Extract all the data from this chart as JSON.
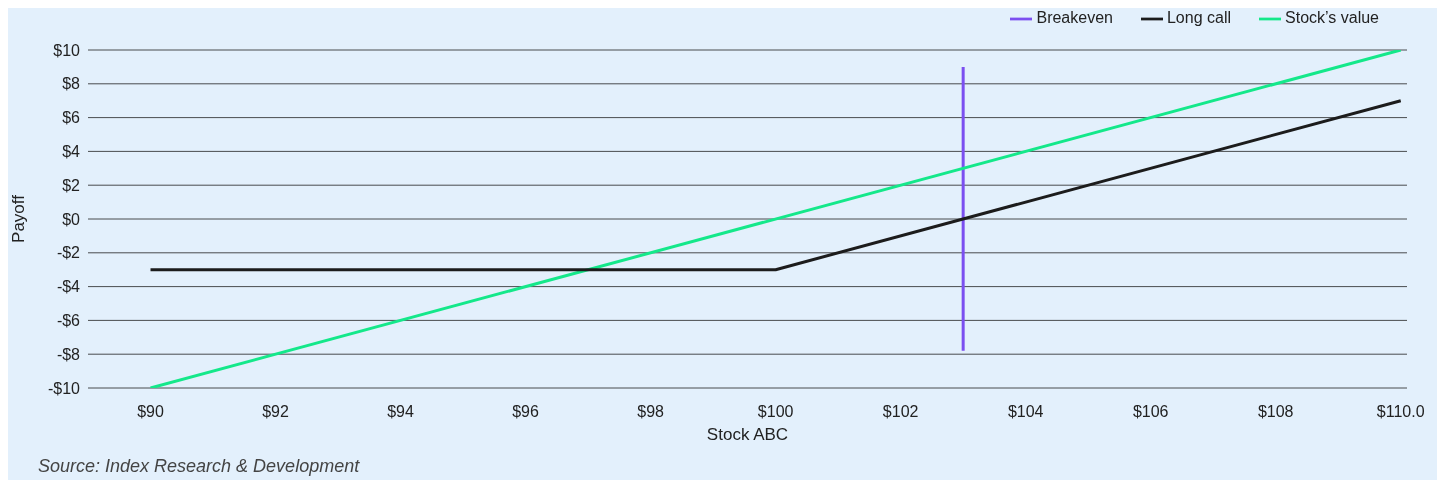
{
  "chart_data": {
    "type": "line",
    "xlabel": "Stock ABC",
    "ylabel": "Payoff",
    "annotations": [
      "Source: Index Research & Development"
    ],
    "xlim": [
      89,
      110.1
    ],
    "ylim": [
      -10,
      10
    ],
    "xticks": [
      {
        "value": 90,
        "label": "$90"
      },
      {
        "value": 92,
        "label": "$92"
      },
      {
        "value": 94,
        "label": "$94"
      },
      {
        "value": 96,
        "label": "$96"
      },
      {
        "value": 98,
        "label": "$98"
      },
      {
        "value": 100,
        "label": "$100"
      },
      {
        "value": 102,
        "label": "$102"
      },
      {
        "value": 104,
        "label": "$104"
      },
      {
        "value": 106,
        "label": "$106"
      },
      {
        "value": 108,
        "label": "$108"
      },
      {
        "value": 110,
        "label": "$110.0"
      }
    ],
    "yticks": [
      {
        "value": -10,
        "label": "-$10"
      },
      {
        "value": -8,
        "label": "-$8"
      },
      {
        "value": -6,
        "label": "-$6"
      },
      {
        "value": -4,
        "label": "-$4"
      },
      {
        "value": -2,
        "label": "-$2"
      },
      {
        "value": 0,
        "label": "$0"
      },
      {
        "value": 2,
        "label": "$2"
      },
      {
        "value": 4,
        "label": "$4"
      },
      {
        "value": 6,
        "label": "$6"
      },
      {
        "value": 8,
        "label": "$8"
      },
      {
        "value": 10,
        "label": "$10"
      }
    ],
    "grid": "y",
    "legend": "top right",
    "marker": "none",
    "line_style": "solid",
    "series": [
      {
        "name": "Breakeven",
        "color": "#7b4ff0",
        "x": [
          103,
          103
        ],
        "values": [
          -7.8,
          9
        ]
      },
      {
        "name": "Stock’s value",
        "color": "#14e88a",
        "x": [
          90,
          110
        ],
        "values": [
          -10,
          10
        ]
      },
      {
        "name": "Long call",
        "color": "#1c1c1c",
        "x": [
          90,
          100,
          110
        ],
        "values": [
          -3,
          -3,
          7
        ]
      }
    ]
  }
}
